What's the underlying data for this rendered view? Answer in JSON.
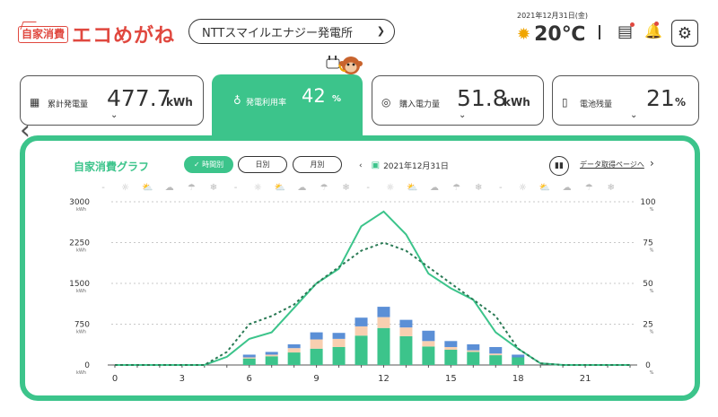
{
  "header": {
    "logo_box": "自家消費",
    "logo_text": "エコめがね",
    "plant_name": "NTTスマイルエナジー発電所",
    "date": "2021年12月31日(金)",
    "temperature": "20℃"
  },
  "cards": {
    "generation": {
      "label": "累計発電量",
      "value": "477.7",
      "unit": "kWh"
    },
    "utilization": {
      "label": "発電利用率",
      "value": "42",
      "unit": "%"
    },
    "purchase": {
      "label": "購入電力量",
      "value": "51.8",
      "unit": "kWh"
    },
    "battery": {
      "label": "電池残量",
      "value": "21",
      "unit": "%"
    }
  },
  "chart_panel": {
    "title": "自家消費グラフ",
    "tabs": [
      "✓ 時間別",
      "日別",
      "月別"
    ],
    "active_tab": 0,
    "date": "2021年12月31日",
    "data_link": "データ取得ページへ"
  },
  "icons": {
    "header": [
      "sun-icon",
      "meter-icon",
      "bell-icon",
      "gear-icon"
    ],
    "weather_cycle": [
      "-",
      "☼",
      "⛅",
      "☁",
      "☂",
      "❄"
    ]
  },
  "colors": {
    "accent": "#3cc48b",
    "logo": "#e0483f",
    "bar_bottom": "#3cc48b",
    "bar_middle": "#f8cfb0",
    "bar_top": "#5b8fd6",
    "line_solid": "#3cc48b",
    "line_dotted": "#2a7a55"
  },
  "chart_data": {
    "type": "bar",
    "title": "",
    "x": [
      0,
      1,
      2,
      3,
      4,
      5,
      6,
      7,
      8,
      9,
      10,
      11,
      12,
      13,
      14,
      15,
      16,
      17,
      18,
      19,
      20,
      21,
      22,
      23
    ],
    "x_tick_labels": [
      "0",
      "3",
      "6",
      "9",
      "12",
      "15",
      "18",
      "21"
    ],
    "y_left_ticks": [
      "0",
      "750",
      "1500",
      "2250",
      "3000"
    ],
    "y_left_unit": "kWh",
    "y_left_range": [
      0,
      3000
    ],
    "y_right_ticks": [
      "0",
      "25",
      "50",
      "75",
      "100"
    ],
    "y_right_unit": "%",
    "y_right_range": [
      0,
      100
    ],
    "stacked_bars": [
      {
        "name": "",
        "values": [
          0,
          0,
          0,
          0,
          0,
          0,
          120,
          160,
          230,
          300,
          330,
          540,
          680,
          530,
          340,
          280,
          240,
          180,
          140,
          0,
          0,
          0,
          0,
          0
        ]
      },
      {
        "name": "",
        "values": [
          0,
          0,
          0,
          0,
          0,
          0,
          20,
          30,
          80,
          170,
          150,
          170,
          200,
          160,
          100,
          50,
          30,
          30,
          0,
          0,
          0,
          0,
          0,
          0
        ]
      },
      {
        "name": "",
        "values": [
          0,
          0,
          0,
          0,
          0,
          0,
          50,
          50,
          70,
          130,
          110,
          160,
          190,
          140,
          190,
          110,
          110,
          120,
          50,
          0,
          0,
          0,
          0,
          0
        ]
      }
    ],
    "lines": [
      {
        "name": "",
        "style": "solid",
        "values": [
          0,
          0,
          0,
          0,
          0,
          5,
          16,
          20,
          35,
          50,
          59,
          85,
          94,
          80,
          56,
          47,
          40,
          20,
          10,
          1,
          0,
          0,
          0,
          0
        ]
      },
      {
        "name": "",
        "style": "dotted",
        "values": [
          0,
          0,
          0,
          0,
          0,
          8,
          25,
          30,
          37,
          50,
          60,
          70,
          75,
          70,
          60,
          50,
          40,
          30,
          10,
          1,
          0,
          0,
          0,
          0
        ]
      }
    ],
    "grid": true
  }
}
